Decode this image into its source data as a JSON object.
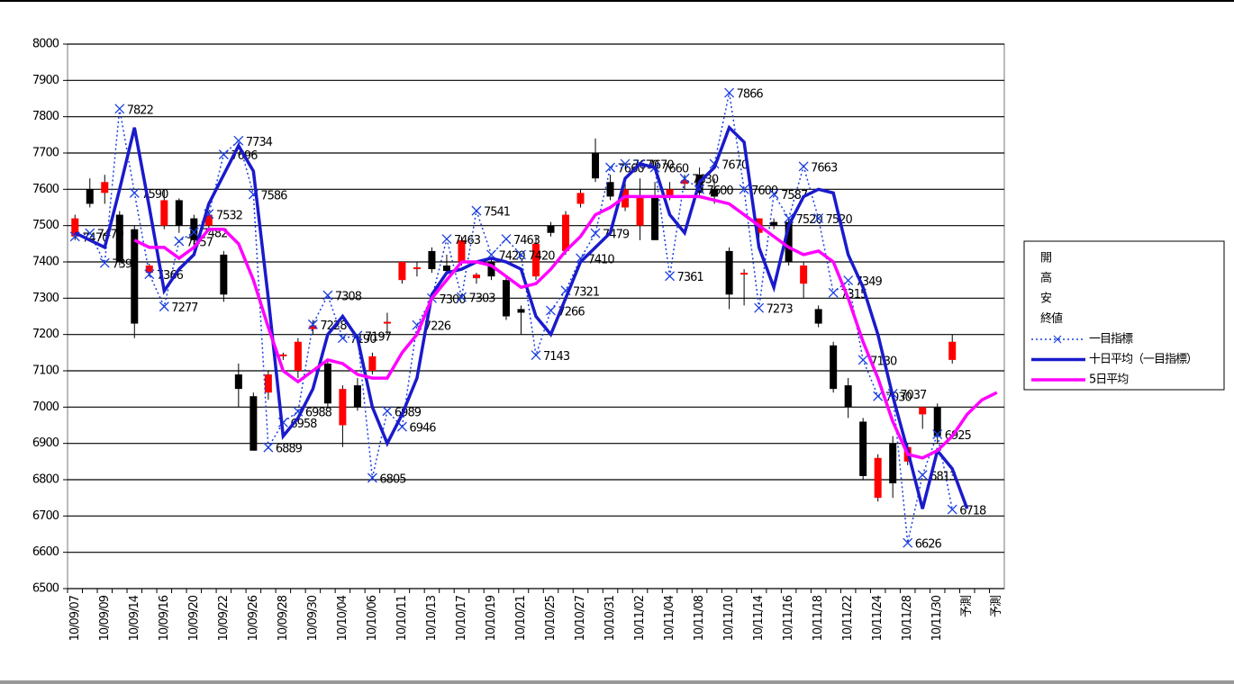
{
  "chart_data": {
    "type": "candlestick",
    "categories": [
      "10/09/07",
      null,
      "10/09/09",
      null,
      "10/09/14",
      null,
      "10/09/16",
      null,
      "10/09/20",
      null,
      "10/09/22",
      null,
      "10/09/26",
      null,
      "10/09/28",
      null,
      "10/09/30",
      null,
      "10/10/04",
      null,
      "10/10/06",
      null,
      "10/10/11",
      null,
      "10/10/13",
      null,
      "10/10/17",
      null,
      "10/10/19",
      null,
      "10/10/21",
      null,
      "10/10/25",
      null,
      "10/10/27",
      null,
      "10/10/31",
      null,
      "10/11/02",
      null,
      "10/11/04",
      null,
      "10/11/08",
      null,
      "10/11/10",
      null,
      "10/11/14",
      null,
      "10/11/16",
      null,
      "10/11/18",
      null,
      "10/11/22",
      null,
      "10/11/24",
      null,
      "10/11/28",
      null,
      "10/11/30",
      null,
      "予測",
      null,
      "予測"
    ],
    "ylim": [
      6500,
      8000
    ],
    "yticks": [
      6500,
      6600,
      6700,
      6800,
      6900,
      7000,
      7100,
      7200,
      7300,
      7400,
      7500,
      7600,
      7700,
      7800,
      7900,
      8000
    ],
    "grid": true,
    "legend": "right",
    "up_color": "#ff0000",
    "down_color": "#000000",
    "series": [
      {
        "name": "開",
        "values": [
          7470,
          7600,
          7590,
          7530,
          7490,
          7370,
          7500,
          7570,
          7520,
          7500,
          7420,
          7090,
          7030,
          7040,
          7140,
          7100,
          7215,
          7120,
          6950,
          7060,
          7100,
          7230,
          7350,
          7380,
          7430,
          7390,
          7400,
          7355,
          7400,
          7350,
          7270,
          7360,
          7500,
          7430,
          7560,
          7700,
          7620,
          7550,
          7500,
          7580,
          7580,
          7615,
          7640,
          7600,
          7430,
          7365,
          7480,
          7510,
          7510,
          7340,
          7270,
          7170,
          7060,
          6960,
          6750,
          6900,
          6850,
          6980,
          7000,
          7130,
          null,
          null,
          null
        ]
      },
      {
        "name": "高",
        "values": [
          7530,
          7630,
          7640,
          7540,
          7500,
          7395,
          7600,
          7575,
          7530,
          7540,
          7430,
          7120,
          7040,
          7100,
          7150,
          7190,
          7240,
          7130,
          7060,
          7080,
          7150,
          7260,
          7400,
          7400,
          7440,
          7420,
          7470,
          7370,
          7410,
          7360,
          7280,
          7470,
          7510,
          7540,
          7600,
          7740,
          7640,
          7620,
          7630,
          7620,
          7620,
          7640,
          7660,
          7630,
          7440,
          7380,
          7520,
          7520,
          7520,
          7400,
          7280,
          7180,
          7080,
          6970,
          6870,
          6920,
          6900,
          7000,
          7010,
          7200,
          null,
          null,
          null
        ]
      },
      {
        "name": "安",
        "values": [
          7460,
          7550,
          7560,
          7390,
          7190,
          7360,
          7490,
          7480,
          7440,
          7490,
          7290,
          7000,
          6880,
          7020,
          7130,
          7080,
          7200,
          7000,
          6890,
          6990,
          7090,
          7200,
          7340,
          7360,
          7370,
          7370,
          7390,
          7340,
          7350,
          7240,
          7200,
          7350,
          7470,
          7420,
          7550,
          7620,
          7570,
          7540,
          7460,
          7460,
          7570,
          7600,
          7580,
          7560,
          7270,
          7280,
          7460,
          7490,
          7390,
          7300,
          7220,
          7040,
          6970,
          6800,
          6740,
          6750,
          6840,
          6940,
          6900,
          7120,
          null,
          null,
          null
        ]
      },
      {
        "name": "終値",
        "values": [
          7520,
          7560,
          7620,
          7400,
          7230,
          7390,
          7570,
          7500,
          7460,
          7530,
          7310,
          7050,
          6880,
          7090,
          7145,
          7180,
          7225,
          7010,
          7050,
          7000,
          7140,
          7235,
          7400,
          7385,
          7380,
          7375,
          7460,
          7365,
          7360,
          7250,
          7260,
          7450,
          7480,
          7530,
          7590,
          7630,
          7580,
          7600,
          7580,
          7460,
          7600,
          7625,
          7590,
          7580,
          7310,
          7370,
          7520,
          7500,
          7400,
          7390,
          7230,
          7050,
          7000,
          6810,
          6860,
          6790,
          6890,
          7000,
          6920,
          7180,
          null,
          null,
          null
        ]
      },
      {
        "name": "一目指標",
        "type": "line",
        "color": "#1a3fe0",
        "dash": "dotted",
        "marker": "x",
        "labels": true,
        "values": [
          7470,
          7479,
          7397,
          7822,
          7590,
          7366,
          7277,
          7457,
          7482,
          7532,
          7696,
          7734,
          7586,
          6889,
          6958,
          6988,
          7228,
          7308,
          7190,
          7197,
          6805,
          6989,
          6946,
          7226,
          7300,
          7463,
          7303,
          7541,
          7420,
          7463,
          7420,
          7143,
          7266,
          7321,
          7410,
          7479,
          7660,
          7670,
          7670,
          7660,
          7361,
          7630,
          7600,
          7670,
          7866,
          7600,
          7273,
          7587,
          7520,
          7663,
          7520,
          7315,
          7349,
          7130,
          7030,
          7037,
          6626,
          6813,
          6925,
          6718,
          null,
          null,
          null
        ]
      },
      {
        "name": "十日平均（一目指標）",
        "type": "line",
        "color": "#1a1acc",
        "values": [
          7480,
          7460,
          7440,
          7600,
          7770,
          7550,
          7320,
          7380,
          7420,
          7560,
          7640,
          7720,
          7650,
          7300,
          6920,
          6970,
          7050,
          7200,
          7250,
          7190,
          7000,
          6900,
          6980,
          7080,
          7310,
          7370,
          7380,
          7400,
          7410,
          7400,
          7380,
          7250,
          7200,
          7300,
          7400,
          7440,
          7480,
          7630,
          7670,
          7660,
          7530,
          7480,
          7620,
          7660,
          7770,
          7730,
          7440,
          7330,
          7500,
          7580,
          7600,
          7590,
          7420,
          7330,
          7200,
          7030,
          6880,
          6720,
          6880,
          6830,
          6720,
          null,
          null
        ]
      },
      {
        "name": "5日平均",
        "type": "line",
        "color": "#ff00ff",
        "values": [
          null,
          null,
          null,
          null,
          7460,
          7440,
          7440,
          7410,
          7440,
          7490,
          7490,
          7450,
          7350,
          7220,
          7100,
          7070,
          7100,
          7130,
          7120,
          7090,
          7080,
          7080,
          7150,
          7200,
          7300,
          7350,
          7400,
          7400,
          7390,
          7360,
          7330,
          7340,
          7380,
          7430,
          7470,
          7530,
          7550,
          7580,
          7580,
          7580,
          7580,
          7580,
          7580,
          7570,
          7560,
          7530,
          7500,
          7470,
          7440,
          7420,
          7430,
          7400,
          7300,
          7180,
          7080,
          6960,
          6870,
          6860,
          6880,
          6920,
          6980,
          7020,
          7040
        ]
      }
    ]
  }
}
